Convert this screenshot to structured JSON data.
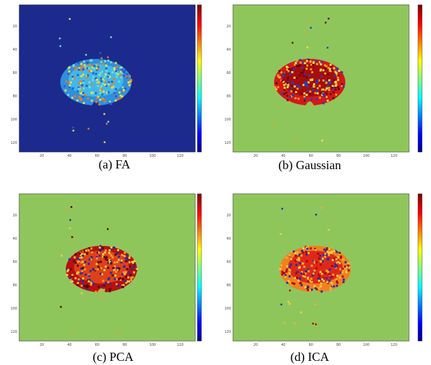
{
  "panels": [
    {
      "caption": "(a) FA"
    },
    {
      "caption": "(b) Gaussian"
    },
    {
      "caption": "(c) PCA"
    },
    {
      "caption": "(d) ICA"
    }
  ],
  "xticks": [
    20,
    40,
    60,
    80,
    100,
    120
  ],
  "yticks": [
    20,
    40,
    60,
    80,
    100,
    120
  ]
}
